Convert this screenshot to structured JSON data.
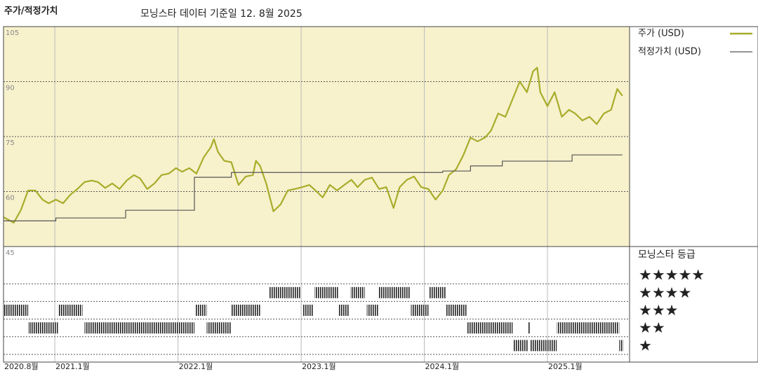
{
  "chart_data": {
    "type": "line",
    "title": "주가/적정가치",
    "subtitle": "모닝스타 데이터 기준일 12. 8월 2025",
    "xlim": [
      0,
      61
    ],
    "xticks": [
      {
        "value": 0,
        "label": "2020.8월"
      },
      {
        "value": 5,
        "label": "2021.1월"
      },
      {
        "value": 17,
        "label": "2022.1월"
      },
      {
        "value": 29,
        "label": "2023.1월"
      },
      {
        "value": 41,
        "label": "2024.1월"
      },
      {
        "value": 53,
        "label": "2025.1월"
      }
    ],
    "ylim": [
      45,
      105
    ],
    "yticks": [
      105,
      90,
      75,
      60,
      45
    ],
    "grid": true,
    "background": "#f7f1cc",
    "series": [
      {
        "name": "주가 (USD)",
        "color": "#a8ac2a",
        "x": [
          0,
          1.0,
          1.7,
          2.4,
          3.1,
          3.8,
          4.4,
          5.1,
          5.8,
          6.5,
          7.2,
          7.9,
          8.6,
          9.2,
          9.9,
          10.6,
          11.3,
          12.0,
          12.7,
          13.3,
          14.0,
          14.7,
          15.4,
          16.1,
          16.8,
          17.4,
          18.1,
          18.8,
          19.5,
          20.2,
          20.5,
          20.9,
          21.5,
          22.2,
          22.9,
          23.6,
          24.3,
          24.6,
          25.0,
          25.6,
          26.3,
          27.0,
          27.7,
          28.4,
          29.1,
          29.8,
          30.4,
          31.1,
          31.8,
          32.5,
          33.2,
          33.9,
          34.5,
          35.2,
          35.9,
          36.6,
          37.3,
          38.0,
          38.6,
          39.3,
          40.0,
          40.7,
          41.4,
          42.1,
          42.8,
          43.4,
          44.1,
          44.8,
          45.5,
          46.2,
          46.9,
          47.5,
          48.2,
          48.9,
          49.6,
          50.3,
          51.0,
          51.6,
          52.0,
          52.3,
          53.0,
          53.7,
          54.4,
          55.1,
          55.7,
          56.4,
          57.1,
          57.8,
          58.5,
          59.2,
          59.8,
          60.3
        ],
        "values": [
          53.0,
          51.5,
          55.0,
          60.3,
          60.3,
          57.8,
          56.8,
          57.8,
          56.8,
          59.1,
          60.7,
          62.6,
          63.0,
          62.6,
          61.0,
          62.2,
          60.7,
          63.0,
          64.5,
          63.6,
          60.7,
          62.2,
          64.5,
          64.9,
          66.4,
          65.4,
          66.4,
          64.9,
          69.3,
          72.1,
          74.3,
          70.8,
          68.4,
          68.0,
          61.8,
          64.1,
          64.5,
          68.4,
          67.0,
          62.2,
          54.6,
          56.5,
          60.3,
          60.7,
          61.2,
          61.8,
          60.3,
          58.4,
          61.8,
          60.3,
          61.8,
          63.2,
          61.2,
          63.2,
          63.8,
          60.7,
          61.2,
          55.5,
          61.2,
          63.2,
          64.1,
          61.2,
          60.7,
          57.8,
          60.3,
          64.5,
          66.1,
          69.9,
          74.7,
          73.7,
          74.7,
          76.6,
          81.3,
          80.4,
          85.2,
          90.0,
          87.1,
          92.8,
          93.8,
          87.1,
          83.3,
          87.1,
          80.4,
          82.3,
          81.3,
          79.4,
          80.4,
          78.4,
          81.3,
          82.3,
          88.0,
          86.1
        ]
      },
      {
        "name": "적정가치 (USD)",
        "color": "#555555",
        "step": "post",
        "x": [
          0,
          5.1,
          11.9,
          18.6,
          22.2,
          42.8,
          45.5,
          48.6,
          55.4,
          60.3
        ],
        "values": [
          52.0,
          52.8,
          54.9,
          63.9,
          65.2,
          65.6,
          67.0,
          68.3,
          70.0,
          70.0
        ]
      }
    ],
    "rating": {
      "title": "모닝스타 등급",
      "labels": [
        "★★★★★",
        "★★★★",
        "★★★",
        "★★",
        "★"
      ],
      "levels": [
        5,
        4,
        3,
        2,
        1
      ],
      "periods": [
        {
          "stars": 3,
          "start": 0,
          "end": 2.4
        },
        {
          "stars": 2,
          "start": 2.4,
          "end": 5.3
        },
        {
          "stars": 3,
          "start": 5.3,
          "end": 7.7
        },
        {
          "stars": 2,
          "start": 7.9,
          "end": 18.6
        },
        {
          "stars": 3,
          "start": 18.7,
          "end": 19.8
        },
        {
          "stars": 2,
          "start": 19.8,
          "end": 22.2
        },
        {
          "stars": 3,
          "start": 22.2,
          "end": 25
        },
        {
          "stars": 4,
          "start": 25.9,
          "end": 28.9
        },
        {
          "stars": 3,
          "start": 29.1,
          "end": 30.2
        },
        {
          "stars": 4,
          "start": 30.3,
          "end": 32.6
        },
        {
          "stars": 3,
          "start": 32.6,
          "end": 33.7
        },
        {
          "stars": 4,
          "start": 33.8,
          "end": 35.2
        },
        {
          "stars": 3,
          "start": 35.4,
          "end": 36.5
        },
        {
          "stars": 4,
          "start": 36.5,
          "end": 39.6
        },
        {
          "stars": 3,
          "start": 39.7,
          "end": 41.4
        },
        {
          "stars": 4,
          "start": 41.5,
          "end": 43.1
        },
        {
          "stars": 3,
          "start": 43.1,
          "end": 45.1
        },
        {
          "stars": 2,
          "start": 45.1,
          "end": 49.6
        },
        {
          "stars": 1,
          "start": 49.7,
          "end": 51.1
        },
        {
          "stars": 2,
          "start": 51.1,
          "end": 51.3
        },
        {
          "stars": 1,
          "start": 51.3,
          "end": 53.9
        },
        {
          "stars": 2,
          "start": 53.9,
          "end": 60
        },
        {
          "stars": 1,
          "start": 60,
          "end": 60.4
        }
      ]
    }
  }
}
